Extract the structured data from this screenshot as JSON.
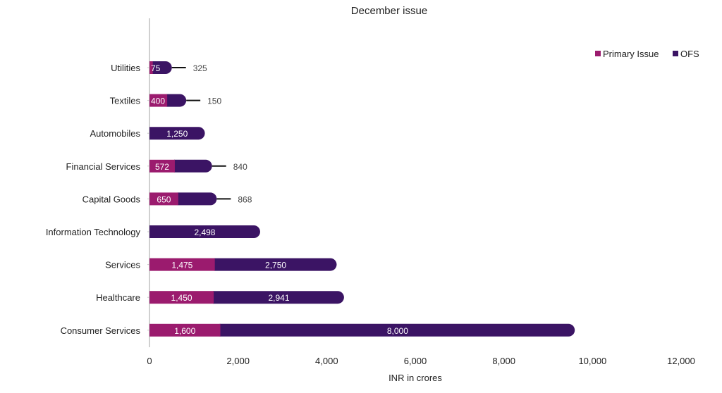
{
  "chart_data": {
    "type": "bar",
    "orientation": "horizontal",
    "stacked": true,
    "title": "December issue",
    "xlabel": "INR in crores",
    "ylabel": "",
    "xlim": [
      0,
      12000
    ],
    "xticks": [
      0,
      2000,
      4000,
      6000,
      8000,
      10000,
      12000
    ],
    "xtick_labels": [
      "0",
      "2,000",
      "4,000",
      "6,000",
      "8,000",
      "10,000",
      "12,000"
    ],
    "grid": false,
    "legend_position": "top-right",
    "categories": [
      "Utilities",
      "Textiles",
      "Automobiles",
      "Financial Services",
      "Capital Goods",
      "Information Technology",
      "Services",
      "Healthcare",
      "Consumer Services"
    ],
    "series": [
      {
        "name": "Primary Issue",
        "color": "#9b1b6e",
        "values": [
          75,
          400,
          0,
          572,
          650,
          0,
          1475,
          1450,
          1600
        ],
        "labels": [
          "75",
          "400",
          "",
          "572",
          "650",
          "",
          "1,475",
          "1,450",
          "1,600"
        ]
      },
      {
        "name": "OFS",
        "color": "#3b1464",
        "values": [
          325,
          150,
          1250,
          840,
          868,
          2498,
          2750,
          2941,
          8000
        ],
        "labels": [
          "325",
          "150",
          "1,250",
          "840",
          "868",
          "2,498",
          "2,750",
          "2,941",
          "8,000"
        ]
      }
    ]
  }
}
